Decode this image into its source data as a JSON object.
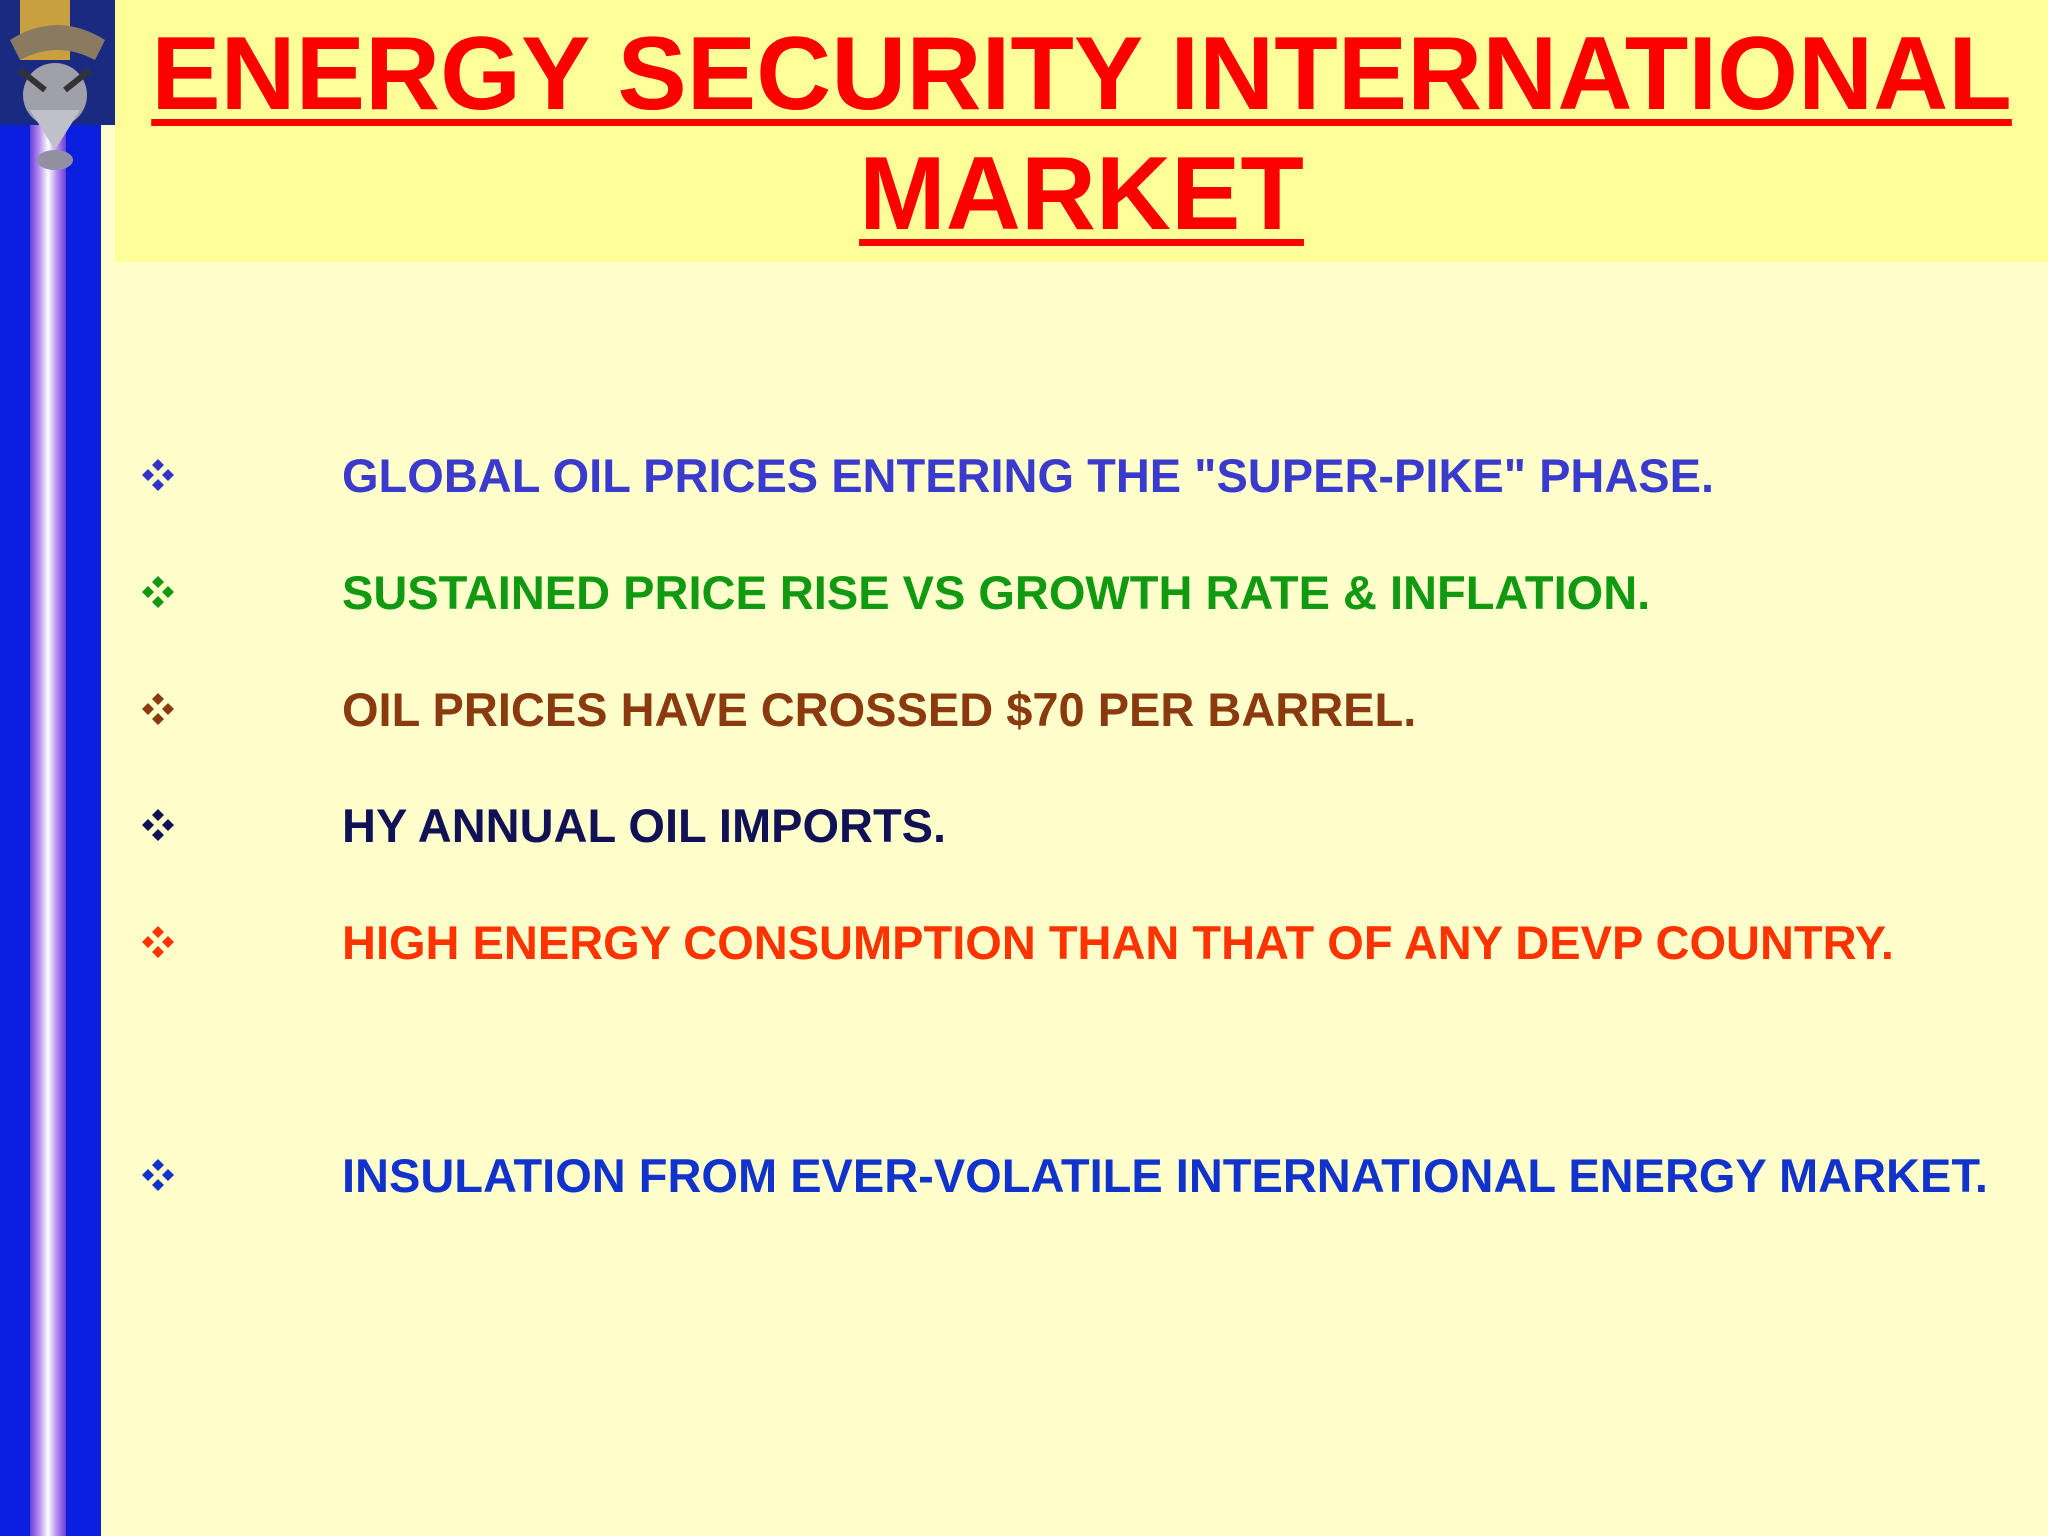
{
  "header": {
    "title": "ENERGY SECURITY INTERNATIONAL MARKET"
  },
  "bullets": [
    "GLOBAL OIL PRICES ENTERING THE \"SUPER-PIKE\" PHASE.",
    "SUSTAINED PRICE RISE VS GROWTH RATE & INFLATION.",
    "OIL PRICES HAVE CROSSED $70 PER BARREL.",
    "HY ANNUAL OIL IMPORTS.",
    "HIGH ENERGY CONSUMPTION THAN THAT OF ANY DEVP COUNTRY.",
    "INSULATION FROM EVER-VOLATILE INTERNATIONAL ENERGY MARKET."
  ]
}
